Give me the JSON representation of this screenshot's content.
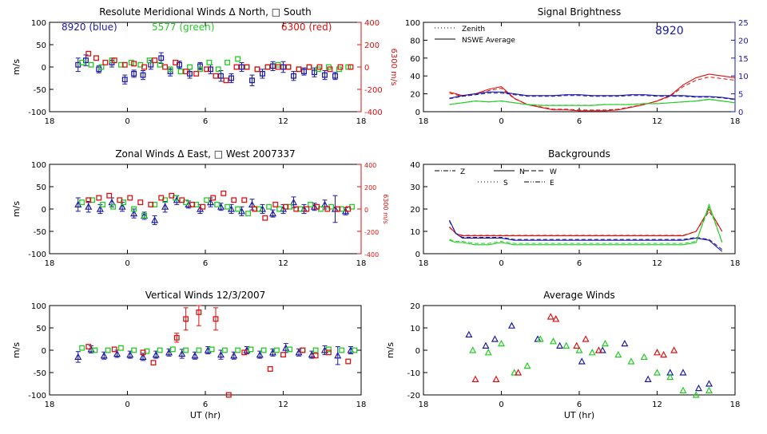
{
  "chart_data": [
    {
      "type": "scatter",
      "title": "Resolute Meridional Winds Δ North, □ South",
      "xlabel": "",
      "ylabel": "m/s",
      "ylabel_right": "6300 m/s",
      "xlim": [
        18,
        42
      ],
      "ylim": [
        -100,
        100
      ],
      "ylim_right": [
        -400,
        400
      ],
      "xticks": [
        "18",
        "0",
        "6",
        "12",
        "18"
      ],
      "yticks": [
        "100",
        "50",
        "0",
        "-50",
        "-100"
      ],
      "yticks_right": [
        "400",
        "200",
        "0",
        "-200",
        "-400"
      ],
      "legend_text": [
        "8920 (blue)",
        "5577 (green)",
        "6300 (red)"
      ],
      "colors": {
        "blue": "#1a1aa6",
        "green": "#22cc22",
        "red": "#dd1111"
      },
      "series": [
        {
          "name": "8920",
          "color": "blue",
          "marker": "square",
          "x": [
            20.2,
            20.8,
            21.8,
            22.8,
            23.8,
            24.5,
            25.2,
            25.8,
            26.6,
            27.3,
            28.0,
            28.8,
            29.6,
            30.4,
            31.2,
            32.0,
            32.8,
            33.6,
            34.4,
            35.2,
            36.0,
            36.8,
            37.6,
            38.4,
            39.2,
            40.0
          ],
          "y": [
            5,
            15,
            -5,
            10,
            -28,
            -15,
            -18,
            5,
            20,
            -10,
            5,
            -15,
            2,
            -5,
            -20,
            -25,
            0,
            -30,
            -15,
            2,
            0,
            -20,
            -10,
            -12,
            -18,
            -20
          ],
          "err": [
            15,
            12,
            8,
            10,
            10,
            8,
            10,
            10,
            12,
            10,
            8,
            10,
            8,
            10,
            12,
            10,
            10,
            12,
            10,
            10,
            12,
            10,
            8,
            10,
            10,
            8
          ]
        },
        {
          "name": "5577",
          "color": "green",
          "marker": "square",
          "x": [
            20.5,
            21.2,
            22.0,
            22.8,
            23.5,
            24.3,
            25.0,
            25.7,
            26.5,
            27.3,
            28.1,
            28.8,
            29.6,
            30.3,
            31.0,
            31.7,
            32.5,
            33.2,
            34.0,
            34.8,
            35.6,
            36.4,
            37.2,
            38.0,
            38.7,
            39.5,
            40.3,
            41.0
          ],
          "y": [
            10,
            5,
            0,
            15,
            5,
            10,
            5,
            15,
            5,
            -5,
            -10,
            0,
            -5,
            10,
            -5,
            10,
            18,
            0,
            -5,
            0,
            5,
            0,
            -5,
            0,
            -5,
            0,
            -5,
            0
          ]
        },
        {
          "name": "6300",
          "color": "red",
          "marker": "square",
          "axis": "right",
          "x": [
            21.0,
            21.6,
            22.3,
            23.0,
            23.8,
            24.5,
            25.3,
            26.1,
            26.9,
            27.7,
            28.5,
            29.3,
            30.1,
            30.8,
            31.6,
            32.4,
            33.2,
            34.0,
            34.8,
            35.6,
            36.4,
            37.2,
            38.0,
            38.8,
            39.6,
            40.4,
            41.2
          ],
          "y": [
            120,
            80,
            40,
            60,
            20,
            30,
            0,
            60,
            0,
            40,
            -40,
            -60,
            -20,
            -80,
            -120,
            0,
            0,
            -20,
            0,
            0,
            0,
            -20,
            0,
            0,
            -20,
            0,
            0
          ]
        }
      ]
    },
    {
      "type": "scatter",
      "title": "Zonal Winds Δ East, □ West 2007337",
      "xlabel": "",
      "ylabel": "m/s",
      "ylabel_right": "6300 m/s",
      "xlim": [
        18,
        42
      ],
      "ylim": [
        -100,
        100
      ],
      "ylim_right": [
        -400,
        400
      ],
      "xticks": [
        "18",
        "0",
        "6",
        "12",
        "18"
      ],
      "yticks": [
        "100",
        "50",
        "0",
        "-50",
        "-100"
      ],
      "yticks_right": [
        "400",
        "200",
        "0",
        "-200",
        "-400"
      ],
      "series": [
        {
          "name": "8920",
          "color": "blue",
          "marker": "triangle",
          "x": [
            20.2,
            21.0,
            21.9,
            22.8,
            23.6,
            24.5,
            25.3,
            26.1,
            26.9,
            27.8,
            28.7,
            29.6,
            30.4,
            31.2,
            32.0,
            32.8,
            33.6,
            34.4,
            35.2,
            36.0,
            36.8,
            37.6,
            38.4,
            39.2,
            40.0,
            40.8
          ],
          "y": [
            10,
            5,
            0,
            15,
            5,
            -10,
            -15,
            -25,
            5,
            20,
            10,
            0,
            15,
            5,
            0,
            -5,
            10,
            0,
            -10,
            0,
            15,
            0,
            5,
            10,
            0,
            -5
          ],
          "err": [
            15,
            12,
            10,
            10,
            10,
            10,
            8,
            10,
            12,
            10,
            8,
            10,
            10,
            8,
            10,
            10,
            12,
            10,
            8,
            10,
            12,
            10,
            8,
            10,
            30,
            8
          ]
        },
        {
          "name": "5577",
          "color": "green",
          "marker": "square",
          "x": [
            20.5,
            21.3,
            22.1,
            22.9,
            23.7,
            24.5,
            25.3,
            26.1,
            26.9,
            27.7,
            28.5,
            29.3,
            30.1,
            30.9,
            31.7,
            32.5,
            33.3,
            34.1,
            34.9,
            35.7,
            36.5,
            37.3,
            38.1,
            38.9,
            39.7,
            40.5,
            41.3
          ],
          "y": [
            15,
            20,
            10,
            5,
            15,
            0,
            -15,
            10,
            20,
            25,
            15,
            10,
            20,
            10,
            5,
            0,
            -10,
            0,
            5,
            0,
            5,
            0,
            10,
            0,
            5,
            0,
            5
          ]
        },
        {
          "name": "6300",
          "color": "red",
          "marker": "square",
          "axis": "right",
          "x": [
            21.0,
            21.8,
            22.6,
            23.4,
            24.2,
            25.0,
            25.8,
            26.6,
            27.4,
            28.2,
            29.0,
            29.8,
            30.6,
            31.4,
            32.2,
            33.0,
            33.8,
            34.6,
            35.4,
            36.2,
            37.0,
            37.8,
            38.6,
            39.4,
            40.2,
            41.0
          ],
          "y": [
            80,
            100,
            120,
            80,
            100,
            60,
            40,
            100,
            120,
            80,
            40,
            20,
            100,
            140,
            80,
            80,
            0,
            -80,
            40,
            20,
            0,
            0,
            20,
            0,
            0,
            0
          ]
        }
      ]
    },
    {
      "type": "scatter",
      "title": "Vertical Winds 12/3/2007",
      "xlabel": "UT (hr)",
      "ylabel": "m/s",
      "xlim": [
        18,
        42
      ],
      "ylim": [
        -100,
        100
      ],
      "xticks": [
        "18",
        "0",
        "6",
        "12",
        "18"
      ],
      "yticks": [
        "100",
        "50",
        "0",
        "-50",
        "-100"
      ],
      "series": [
        {
          "name": "8920",
          "color": "blue",
          "marker": "triangle",
          "x": [
            20.2,
            21.2,
            22.2,
            23.2,
            24.2,
            25.2,
            26.2,
            27.2,
            28.2,
            29.2,
            30.2,
            31.2,
            32.2,
            33.2,
            34.2,
            35.2,
            36.2,
            37.2,
            38.2,
            39.2,
            40.2,
            41.2
          ],
          "y": [
            -15,
            2,
            -12,
            -8,
            -10,
            -15,
            -10,
            -5,
            -8,
            -12,
            0,
            -10,
            -12,
            0,
            -10,
            -5,
            5,
            -5,
            -10,
            0,
            -12,
            0
          ],
          "err": [
            12,
            8,
            8,
            8,
            8,
            8,
            8,
            8,
            10,
            8,
            8,
            10,
            8,
            8,
            8,
            8,
            10,
            8,
            8,
            10,
            20,
            8
          ]
        },
        {
          "name": "5577",
          "color": "green",
          "marker": "square",
          "x": [
            20.5,
            21.5,
            22.5,
            23.5,
            24.5,
            25.5,
            26.5,
            27.5,
            28.5,
            29.5,
            30.5,
            31.5,
            32.5,
            33.5,
            34.5,
            35.5,
            36.5,
            37.5,
            38.5,
            39.5,
            40.5,
            41.5
          ],
          "y": [
            5,
            0,
            0,
            5,
            0,
            -2,
            0,
            2,
            0,
            0,
            2,
            0,
            0,
            2,
            0,
            0,
            2,
            0,
            0,
            2,
            0,
            0
          ],
          "marker_note": "asterisk"
        },
        {
          "name": "6300",
          "color": "red",
          "marker": "square",
          "x": [
            21.0,
            23.0,
            25.2,
            26.0,
            27.8,
            28.5,
            29.5,
            30.8,
            31.8,
            33.0,
            35.0,
            36.0,
            37.5,
            38.5,
            39.5,
            41.0
          ],
          "y": [
            8,
            2,
            -5,
            -28,
            28,
            70,
            85,
            70,
            -100,
            -5,
            -42,
            -10,
            0,
            -12,
            -5,
            -25
          ],
          "err": [
            0,
            0,
            0,
            0,
            10,
            25,
            30,
            25,
            0,
            0,
            0,
            0,
            0,
            0,
            0,
            0
          ]
        }
      ]
    },
    {
      "type": "line",
      "title": "Signal Brightness",
      "xlabel": "",
      "ylabel": "",
      "xlim": [
        18,
        42
      ],
      "ylim": [
        0,
        100
      ],
      "ylim_right": [
        0,
        25
      ],
      "xticks": [
        "18",
        "0",
        "6",
        "12",
        "18"
      ],
      "yticks": [
        "100",
        "80",
        "60",
        "40",
        "20",
        "0"
      ],
      "yticks_right": [
        "25",
        "20",
        "15",
        "10",
        "5",
        "0"
      ],
      "legend": [
        "Zenith",
        "NSWE Average"
      ],
      "annotation": "8920",
      "x": [
        20,
        21,
        22,
        23,
        24,
        25,
        26,
        27,
        28,
        29,
        30,
        31,
        32,
        33,
        34,
        35,
        36,
        37,
        38,
        39,
        40,
        41,
        42
      ],
      "series": [
        {
          "name": "red",
          "color": "red",
          "values": [
            22,
            18,
            20,
            25,
            28,
            15,
            8,
            5,
            2,
            2,
            1,
            1,
            1,
            2,
            5,
            8,
            12,
            18,
            30,
            38,
            42,
            40,
            38
          ]
        },
        {
          "name": "blue",
          "color": "blue",
          "values": [
            15,
            18,
            20,
            22,
            22,
            20,
            18,
            18,
            18,
            19,
            19,
            18,
            18,
            18,
            19,
            19,
            18,
            18,
            18,
            17,
            17,
            16,
            14
          ]
        },
        {
          "name": "green",
          "color": "green",
          "values": [
            8,
            10,
            12,
            11,
            12,
            10,
            8,
            7,
            7,
            7,
            7,
            7,
            8,
            8,
            8,
            9,
            9,
            10,
            11,
            12,
            14,
            12,
            10
          ]
        }
      ]
    },
    {
      "type": "line",
      "title": "Backgrounds",
      "xlabel": "",
      "ylabel": "",
      "xlim": [
        18,
        42
      ],
      "ylim": [
        0,
        40
      ],
      "xticks": [
        "18",
        "0",
        "6",
        "12",
        "18"
      ],
      "yticks": [
        "40",
        "30",
        "20",
        "10",
        "0"
      ],
      "legend": [
        "Z",
        "N",
        "W",
        "S",
        "E"
      ],
      "x": [
        20,
        20.5,
        21,
        22,
        23,
        24,
        25,
        26,
        27,
        28,
        29,
        30,
        31,
        32,
        33,
        34,
        35,
        36,
        37,
        38,
        39,
        40,
        41
      ],
      "series": [
        {
          "name": "red",
          "color": "red",
          "values": [
            12,
            9,
            8,
            8,
            8,
            8,
            8,
            8,
            8,
            8,
            8,
            8,
            8,
            8,
            8,
            8,
            8,
            8,
            8,
            8,
            10,
            20,
            10
          ]
        },
        {
          "name": "blue",
          "color": "blue",
          "values": [
            15,
            9,
            7,
            7,
            7,
            7,
            6,
            6,
            6,
            6,
            6,
            6,
            6,
            6,
            6,
            6,
            6,
            6,
            6,
            6,
            7,
            6,
            1
          ]
        },
        {
          "name": "green",
          "color": "green",
          "values": [
            6,
            5,
            5,
            4,
            4,
            5,
            4,
            4,
            4,
            4,
            4,
            4,
            4,
            4,
            4,
            4,
            4,
            4,
            4,
            4,
            5,
            22,
            5
          ]
        }
      ]
    },
    {
      "type": "scatter",
      "title": "Average Winds",
      "xlabel": "UT (hr)",
      "ylabel": "m/s",
      "xlim": [
        18,
        42
      ],
      "ylim": [
        -20,
        20
      ],
      "xticks": [
        "18",
        "0",
        "6",
        "12",
        "18"
      ],
      "yticks": [
        "20",
        "10",
        "0",
        "-10",
        "-20"
      ],
      "series": [
        {
          "name": "blue",
          "color": "blue",
          "marker": "triangle",
          "x": [
            21.5,
            22.8,
            23.5,
            24.8,
            26.8,
            28.5,
            30.2,
            31.8,
            33.5,
            35.3,
            37.0,
            38.0,
            39.2,
            40.0
          ],
          "y": [
            7,
            2,
            5,
            11,
            5,
            2,
            -5,
            0,
            3,
            -13,
            -10,
            -10,
            -17,
            -15
          ]
        },
        {
          "name": "green",
          "color": "green",
          "marker": "triangle",
          "x": [
            21.8,
            23.0,
            24.0,
            25.0,
            26.0,
            27.0,
            28.0,
            29.0,
            30.0,
            31.0,
            32.0,
            33.0,
            34.0,
            35.0,
            36.0,
            37.0,
            38.0,
            39.0,
            40.0
          ],
          "y": [
            0,
            -1,
            3,
            -10,
            -7,
            5,
            4,
            2,
            0,
            -1,
            3,
            -2,
            -5,
            -3,
            -10,
            -12,
            -18,
            -20,
            -18
          ]
        },
        {
          "name": "red",
          "color": "red",
          "marker": "triangle",
          "x": [
            22.0,
            23.6,
            25.3,
            27.8,
            28.2,
            29.8,
            30.5,
            31.5,
            36.0,
            36.5,
            37.3
          ],
          "y": [
            -13,
            -13,
            -10,
            15,
            14,
            2,
            5,
            0,
            -1,
            -2,
            0
          ]
        }
      ]
    }
  ]
}
